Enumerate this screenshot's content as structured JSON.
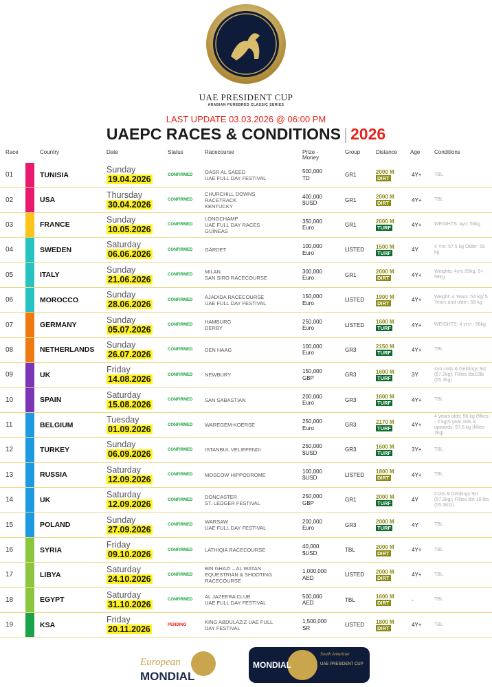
{
  "header": {
    "title": "UAE PRESIDENT CUP",
    "subtitle": "ARABIAN PUREBRED CLASSIC SERIES",
    "update": "LAST UPDATE 03.03.2026 @ 06:00 PM",
    "heading": "UAEPC RACES & CONDITIONS",
    "separator": "|",
    "year": "2026"
  },
  "table": {
    "columns": [
      "Race",
      "Country",
      "Date",
      "Status",
      "Racecourse",
      "Prize - Money",
      "Group",
      "Distance",
      "Age",
      "Conditions"
    ],
    "rows": [
      {
        "race": "01",
        "color": "#e8196f",
        "country": "TUNISIA",
        "day": "Sunday",
        "date": "19.04.2026",
        "status": "CONFIRMED",
        "racecourse": [
          "OASR AL SAEED",
          "UAE FULL DAY FESTIVAL"
        ],
        "prize": [
          "500,000",
          "TD"
        ],
        "group": "GR1",
        "distance": "2000 M",
        "surface": "DIRT",
        "age": "4Y+",
        "conditions": "TBL"
      },
      {
        "race": "02",
        "color": "#e8196f",
        "country": "USA",
        "day": "Thursday",
        "date": "30.04.2026",
        "status": "CONFIRMED",
        "racecourse": [
          "CHURCHILL DOWNS",
          "RACETRACK",
          "KENTUCKY"
        ],
        "prize": [
          "400,000",
          "$USD"
        ],
        "group": "GR1",
        "distance": "2000 M",
        "surface": "DIRT",
        "age": "4Y+",
        "conditions": "TBL"
      },
      {
        "race": "03",
        "color": "#fcc419",
        "country": "FRANCE",
        "day": "Sunday",
        "date": "10.05.2026",
        "status": "CONFIRMED",
        "racecourse": [
          "LONGCHAMP",
          "UAE FULL DAY RACES -",
          "GUINEAS"
        ],
        "prize": [
          "350,000",
          "Euro"
        ],
        "group": "GR1",
        "distance": "2000 M",
        "surface": "TURF",
        "age": "4Y+",
        "conditions": "WEIGHTS: 4yo: 56kg"
      },
      {
        "race": "04",
        "color": "#27c3c3",
        "country": "SWEDEN",
        "day": "Saturday",
        "date": "06.06.2026",
        "status": "CONFIRMED",
        "racecourse": [
          "GÄRDET"
        ],
        "prize": [
          "100,000",
          "Euro"
        ],
        "group": "LISTED",
        "distance": "1500 M",
        "surface": "TURF",
        "age": "4Y",
        "conditions": "4 Yrs: 57,5 kg Older: 59 kg"
      },
      {
        "race": "05",
        "color": "#27c3c3",
        "country": "ITALY",
        "day": "Sunday",
        "date": "21.06.2026",
        "status": "CONFIRMED",
        "racecourse": [
          "MILAN",
          "SAN SIRO RACECOURSE"
        ],
        "prize": [
          "300,000",
          "Euro"
        ],
        "group": "GR1",
        "distance": "2000 M",
        "surface": "DIRT",
        "age": "4Y+",
        "conditions": "Weights: 4yrs 55kg, 5+ 58kg"
      },
      {
        "race": "06",
        "color": "#27c3c3",
        "country": "MOROCCO",
        "day": "Sunday",
        "date": "28.06.2026",
        "status": "CONFIRMED",
        "racecourse": [
          "AJADIDA RACECOURSE",
          "UAE FULL DAY FESTIVAL"
        ],
        "prize": [
          "150,000",
          "Euro"
        ],
        "group": "LISTED",
        "distance": "1900 M",
        "surface": "DIRT",
        "age": "4Y+",
        "conditions": "Weight: 4 Years :54 kg/ 5 Years and older: 58 kg"
      },
      {
        "race": "07",
        "color": "#f07a12",
        "country": "GERMANY",
        "day": "Sunday",
        "date": "05.07.2026",
        "status": "CONFIRMED",
        "racecourse": [
          "HAMBURG",
          "DERBY"
        ],
        "prize": [
          "250,000",
          "Euro"
        ],
        "group": "LISTED",
        "distance": "1600 M",
        "surface": "TURF",
        "age": "4Y+",
        "conditions": "WEIGHTS: 4 yrs+: 56kg"
      },
      {
        "race": "08",
        "color": "#f07a12",
        "country": "NETHERLANDS",
        "day": "Sunday",
        "date": "26.07.2026",
        "status": "CONFIRMED",
        "racecourse": [
          "DEN HAAG"
        ],
        "prize": [
          "100,000",
          "Euro"
        ],
        "group": "GR3",
        "distance": "2150 M",
        "surface": "TURF",
        "age": "4Y+",
        "conditions": "TBL"
      },
      {
        "race": "09",
        "color": "#7b35b5",
        "country": "UK",
        "day": "Friday",
        "date": "14.08.2026",
        "status": "CONFIRMED",
        "racecourse": [
          "NEWBURY"
        ],
        "prize": [
          "150,000",
          "GBP"
        ],
        "group": "GR3",
        "distance": "1600 M",
        "surface": "TURF",
        "age": "3Y",
        "conditions": "4yo colts & Geldings 9st (57.2kg); Fillies 8st10lb (55.3kg)"
      },
      {
        "race": "10",
        "color": "#7b35b5",
        "country": "SPAIN",
        "day": "Saturday",
        "date": "15.08.2026",
        "status": "CONFIRMED",
        "racecourse": [
          "SAN SABASTIAN"
        ],
        "prize": [
          "200,000",
          "Euro"
        ],
        "group": "GR3",
        "distance": "1600 M",
        "surface": "TURF",
        "age": "4Y+",
        "conditions": "TBL"
      },
      {
        "race": "11",
        "color": "#1e9be0",
        "country": "BELGIUM",
        "day": "Tuesday",
        "date": "01.09.2026",
        "status": "CONFIRMED",
        "racecourse": [
          "WAREGEM-KOERSE"
        ],
        "prize": [
          "250,000",
          "Euro"
        ],
        "group": "GR3",
        "distance": "2170 M",
        "surface": "TURF",
        "age": "4Y+",
        "conditions": "4 years olds: 56 kg (fillies: - 2 kg)5 year olds & upwards: 57,5 kg (fillies - 2kg)"
      },
      {
        "race": "12",
        "color": "#1e9be0",
        "country": "TURKEY",
        "day": "Sunday",
        "date": "06.09.2026",
        "status": "CONFIRMED",
        "racecourse": [
          "ISTANBUL VELIEFENDI"
        ],
        "prize": [
          "250,000",
          "$USD"
        ],
        "group": "GR3",
        "distance": "1600 M",
        "surface": "TURF",
        "age": "3Y+",
        "conditions": "TBL"
      },
      {
        "race": "13",
        "color": "#1e9be0",
        "country": "RUSSIA",
        "day": "Saturday",
        "date": "12.09.2026",
        "status": "CONFIRMED",
        "racecourse": [
          "MOSCOW HIPPODROME"
        ],
        "prize": [
          "100,000",
          "$USD"
        ],
        "group": "LISTED",
        "distance": "1800 M",
        "surface": "DIRT",
        "age": "4Y+",
        "conditions": "TBL"
      },
      {
        "race": "14",
        "color": "#1e9be0",
        "country": "UK",
        "day": "Saturday",
        "date": "12.09.2026",
        "status": "CONFIRMED",
        "racecourse": [
          "DONCASTER",
          "ST. LEDGER FESTIVAL"
        ],
        "prize": [
          "250,000",
          "GBP"
        ],
        "group": "GR1",
        "distance": "2000 M",
        "surface": "TURF",
        "age": "4Y",
        "conditions": "Colts & Geldings 9st (57.2kg); Fillies 8st 10 lbs (55.3KG)"
      },
      {
        "race": "15",
        "color": "#1e9be0",
        "country": "POLAND",
        "day": "Sunday",
        "date": "27.09.2026",
        "status": "CONFIRMED",
        "racecourse": [
          "WARSAW",
          "UAE FULL DAY FESTIVAL"
        ],
        "prize": [
          "200,000",
          "Euro"
        ],
        "group": "GR3",
        "distance": "2000 M",
        "surface": "TURF",
        "age": "4Y",
        "conditions": "TBL"
      },
      {
        "race": "16",
        "color": "#8cc63f",
        "country": "SYRIA",
        "day": "Friday",
        "date": "09.10.2026",
        "status": "CONFIRMED",
        "racecourse": [
          "LATHIQIA RACECOURSE"
        ],
        "prize": [
          "40,000",
          "$USD"
        ],
        "group": "TBL",
        "distance": "2000 M",
        "surface": "DIRT",
        "age": "4Y+",
        "conditions": "TBL"
      },
      {
        "race": "17",
        "color": "#8cc63f",
        "country": "LIBYA",
        "day": "Saturday",
        "date": "24.10.2026",
        "status": "CONFIRMED",
        "racecourse": [
          "BIN GHAZI – AL WATAN",
          "EQUESTRIAN & SHOOTING",
          "RACECOURSE"
        ],
        "prize": [
          "1,000,000",
          "AED"
        ],
        "group": "LISTED",
        "distance": "2000 M",
        "surface": "DIRT",
        "age": "4Y+",
        "conditions": "TBL"
      },
      {
        "race": "18",
        "color": "#8cc63f",
        "country": "EGYPT",
        "day": "Saturday",
        "date": "31.10.2026",
        "status": "CONFIRMED",
        "racecourse": [
          "AL JAZEERA CLUB",
          "UAE FULL DAY FESTIVAL"
        ],
        "prize": [
          "500,000",
          "AED"
        ],
        "group": "TBL",
        "distance": "1600 M",
        "surface": "DIRT",
        "age": "-",
        "conditions": "TBL"
      },
      {
        "race": "19",
        "color": "#1aa34a",
        "country": "KSA",
        "day": "Friday",
        "date": "20.11.2026",
        "status": "PENDING",
        "racecourse": [
          "KING ABDULAZIZ UAE FULL",
          "DAY FESTIVAL"
        ],
        "prize": [
          "1,500,000",
          "SR"
        ],
        "group": "LISTED",
        "distance": "1800 M",
        "surface": "DIRT",
        "age": "4Y+",
        "conditions": "TBL"
      }
    ]
  },
  "footer": {
    "left": [
      "European",
      "MONDIAL"
    ],
    "right": [
      "South American",
      "MONDIAL",
      "UAE PRESIDENT CUP"
    ]
  }
}
